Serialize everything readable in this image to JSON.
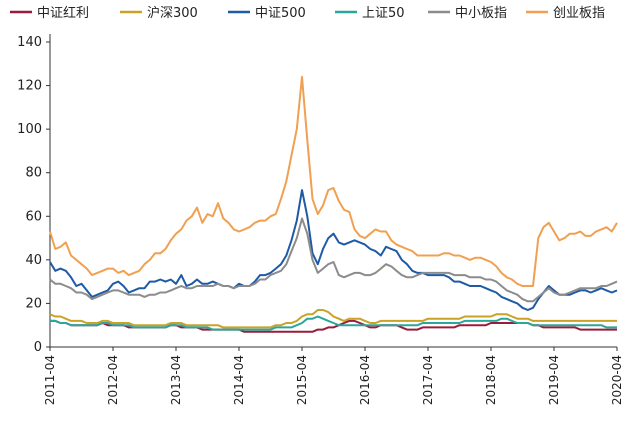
{
  "chart_data": {
    "type": "line",
    "title": "",
    "xlabel": "",
    "ylabel": "",
    "ylim": [
      0,
      140
    ],
    "yticks": [
      0,
      20,
      40,
      60,
      80,
      100,
      120,
      140
    ],
    "x_start": "2011-04",
    "x_step_months": 1,
    "x_count": 109,
    "xticks": [
      "2011-04",
      "2012-04",
      "2013-04",
      "2014-04",
      "2015-04",
      "2016-04",
      "2017-04",
      "2018-04",
      "2019-04",
      "2020-04"
    ],
    "legend_position": "top",
    "grid": false,
    "series": [
      {
        "name": "中证红利",
        "color": "#9b1b3a",
        "values": [
          12,
          12,
          11,
          11,
          10,
          10,
          10,
          10,
          10,
          10,
          11,
          10,
          10,
          10,
          10,
          9,
          9,
          9,
          9,
          9,
          9,
          9,
          9,
          10,
          10,
          9,
          9,
          9,
          9,
          8,
          8,
          8,
          8,
          8,
          8,
          8,
          8,
          7,
          7,
          7,
          7,
          7,
          7,
          7,
          7,
          7,
          7,
          7,
          7,
          7,
          7,
          8,
          8,
          9,
          9,
          10,
          11,
          12,
          12,
          11,
          10,
          9,
          9,
          10,
          10,
          10,
          10,
          9,
          8,
          8,
          8,
          9,
          9,
          9,
          9,
          9,
          9,
          9,
          10,
          10,
          10,
          10,
          10,
          10,
          11,
          11,
          11,
          11,
          11,
          11,
          11,
          11,
          10,
          10,
          9,
          9,
          9,
          9,
          9,
          9,
          9,
          8,
          8,
          8,
          8,
          8,
          8,
          8,
          8
        ]
      },
      {
        "name": "沪深300",
        "color": "#c9a227",
        "values": [
          15,
          14,
          14,
          13,
          12,
          12,
          12,
          11,
          11,
          11,
          12,
          12,
          11,
          11,
          11,
          11,
          10,
          10,
          10,
          10,
          10,
          10,
          10,
          11,
          11,
          11,
          10,
          10,
          10,
          10,
          10,
          10,
          10,
          9,
          9,
          9,
          9,
          9,
          9,
          9,
          9,
          9,
          9,
          10,
          10,
          11,
          11,
          12,
          14,
          15,
          15,
          17,
          17,
          16,
          14,
          13,
          12,
          13,
          13,
          13,
          12,
          11,
          11,
          12,
          12,
          12,
          12,
          12,
          12,
          12,
          12,
          12,
          13,
          13,
          13,
          13,
          13,
          13,
          13,
          14,
          14,
          14,
          14,
          14,
          14,
          15,
          15,
          15,
          14,
          13,
          13,
          13,
          12,
          12,
          12,
          12,
          12,
          12,
          12,
          12,
          12,
          12,
          12,
          12,
          12,
          12,
          12,
          12,
          12
        ]
      },
      {
        "name": "中证500",
        "color": "#1f5aa6",
        "values": [
          39,
          35,
          36,
          35,
          32,
          28,
          29,
          26,
          23,
          24,
          25,
          26,
          29,
          30,
          28,
          25,
          26,
          27,
          27,
          30,
          30,
          31,
          30,
          31,
          29,
          33,
          28,
          29,
          31,
          29,
          29,
          30,
          29,
          28,
          28,
          27,
          29,
          28,
          28,
          30,
          33,
          33,
          34,
          36,
          38,
          42,
          49,
          58,
          72,
          60,
          43,
          38,
          45,
          50,
          52,
          48,
          47,
          48,
          49,
          48,
          47,
          45,
          44,
          42,
          46,
          45,
          44,
          40,
          38,
          35,
          34,
          34,
          33,
          33,
          33,
          33,
          32,
          30,
          30,
          29,
          28,
          28,
          28,
          27,
          26,
          25,
          23,
          22,
          21,
          20,
          18,
          17,
          18,
          22,
          25,
          28,
          26,
          24,
          24,
          24,
          25,
          26,
          26,
          25,
          26,
          27,
          26,
          25,
          26
        ]
      },
      {
        "name": "上证50",
        "color": "#2aa79b",
        "values": [
          12,
          12,
          11,
          11,
          10,
          10,
          10,
          10,
          10,
          10,
          11,
          11,
          10,
          10,
          10,
          10,
          9,
          9,
          9,
          9,
          9,
          9,
          9,
          10,
          10,
          10,
          9,
          9,
          9,
          9,
          9,
          8,
          8,
          8,
          8,
          8,
          8,
          8,
          8,
          8,
          8,
          8,
          8,
          9,
          9,
          9,
          9,
          10,
          11,
          13,
          13,
          14,
          13,
          12,
          11,
          10,
          10,
          10,
          10,
          10,
          10,
          10,
          10,
          10,
          10,
          10,
          10,
          10,
          10,
          10,
          10,
          11,
          11,
          11,
          11,
          11,
          11,
          11,
          11,
          12,
          12,
          12,
          12,
          12,
          12,
          12,
          13,
          13,
          12,
          11,
          11,
          11,
          10,
          10,
          10,
          10,
          10,
          10,
          10,
          10,
          10,
          10,
          10,
          10,
          10,
          10,
          9,
          9,
          9
        ]
      },
      {
        "name": "中小板指",
        "color": "#8c8c8c",
        "values": [
          31,
          29,
          29,
          28,
          27,
          25,
          25,
          24,
          22,
          23,
          24,
          25,
          26,
          26,
          25,
          24,
          24,
          24,
          23,
          24,
          24,
          25,
          25,
          26,
          27,
          28,
          27,
          27,
          28,
          28,
          28,
          28,
          29,
          28,
          28,
          27,
          28,
          28,
          28,
          29,
          31,
          31,
          33,
          34,
          35,
          38,
          44,
          50,
          59,
          52,
          40,
          34,
          36,
          38,
          39,
          33,
          32,
          33,
          34,
          34,
          33,
          33,
          34,
          36,
          38,
          37,
          35,
          33,
          32,
          32,
          33,
          34,
          34,
          34,
          34,
          34,
          34,
          33,
          33,
          33,
          32,
          32,
          32,
          31,
          31,
          30,
          28,
          26,
          25,
          24,
          22,
          21,
          21,
          23,
          25,
          27,
          25,
          24,
          24,
          25,
          26,
          27,
          27,
          27,
          27,
          28,
          28,
          29,
          30
        ]
      },
      {
        "name": "创业板指",
        "color": "#f0a050",
        "values": [
          53,
          45,
          46,
          48,
          42,
          40,
          38,
          36,
          33,
          34,
          35,
          36,
          36,
          34,
          35,
          33,
          34,
          35,
          38,
          40,
          43,
          43,
          45,
          49,
          52,
          54,
          58,
          60,
          64,
          57,
          61,
          60,
          66,
          59,
          57,
          54,
          53,
          54,
          55,
          57,
          58,
          58,
          60,
          61,
          68,
          76,
          88,
          100,
          124,
          95,
          68,
          61,
          65,
          72,
          73,
          67,
          63,
          62,
          54,
          51,
          50,
          52,
          54,
          53,
          53,
          49,
          47,
          46,
          45,
          44,
          42,
          42,
          42,
          42,
          42,
          43,
          43,
          42,
          42,
          41,
          40,
          41,
          41,
          40,
          39,
          37,
          34,
          32,
          31,
          29,
          28,
          28,
          28,
          50,
          55,
          57,
          53,
          49,
          50,
          52,
          52,
          53,
          51,
          51,
          53,
          54,
          55,
          53,
          57
        ]
      }
    ]
  }
}
